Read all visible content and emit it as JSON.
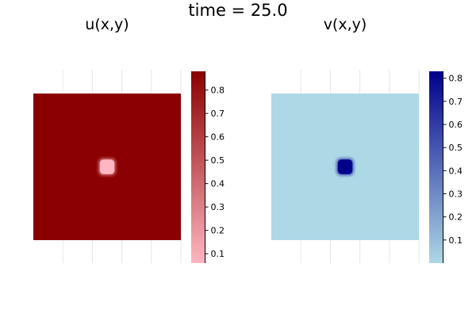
{
  "suptitle": "time = 25.0",
  "colors": {
    "u_low": "#ffb6c1",
    "u_high": "#8b0000",
    "v_low": "#add8e6",
    "v_high": "#00008b",
    "grid": "#e6e6e6",
    "axis": "#000000"
  },
  "chart_data": [
    {
      "type": "heatmap",
      "title": "u(x,y)",
      "xlabel": "",
      "ylabel": "",
      "field": {
        "background_value": 0.88,
        "spot_value": 0.06,
        "spot_center_fraction": [
          0.5,
          0.5
        ],
        "spot_size_fraction": 0.1
      },
      "colorbar": {
        "range": [
          0.06,
          0.88
        ],
        "ticks": [
          0.1,
          0.2,
          0.3,
          0.4,
          0.5,
          0.6,
          0.7,
          0.8
        ],
        "tick_labels": [
          "0.1",
          "0.2",
          "0.3",
          "0.4",
          "0.5",
          "0.6",
          "0.7",
          "0.8"
        ],
        "colormap": [
          "#ffb6c1",
          "#8b0000"
        ]
      },
      "grid": true,
      "tick_labels_visible": false
    },
    {
      "type": "heatmap",
      "title": "v(x,y)",
      "xlabel": "",
      "ylabel": "",
      "field": {
        "background_value": 0.0,
        "spot_value": 0.83,
        "spot_center_fraction": [
          0.5,
          0.5
        ],
        "spot_size_fraction": 0.1
      },
      "colorbar": {
        "range": [
          0.0,
          0.83
        ],
        "ticks": [
          0.1,
          0.2,
          0.3,
          0.4,
          0.5,
          0.6,
          0.7,
          0.8
        ],
        "tick_labels": [
          "0.1",
          "0.2",
          "0.3",
          "0.4",
          "0.5",
          "0.6",
          "0.7",
          "0.8"
        ],
        "colormap": [
          "#add8e6",
          "#00008b"
        ]
      },
      "grid": true,
      "tick_labels_visible": false
    }
  ]
}
